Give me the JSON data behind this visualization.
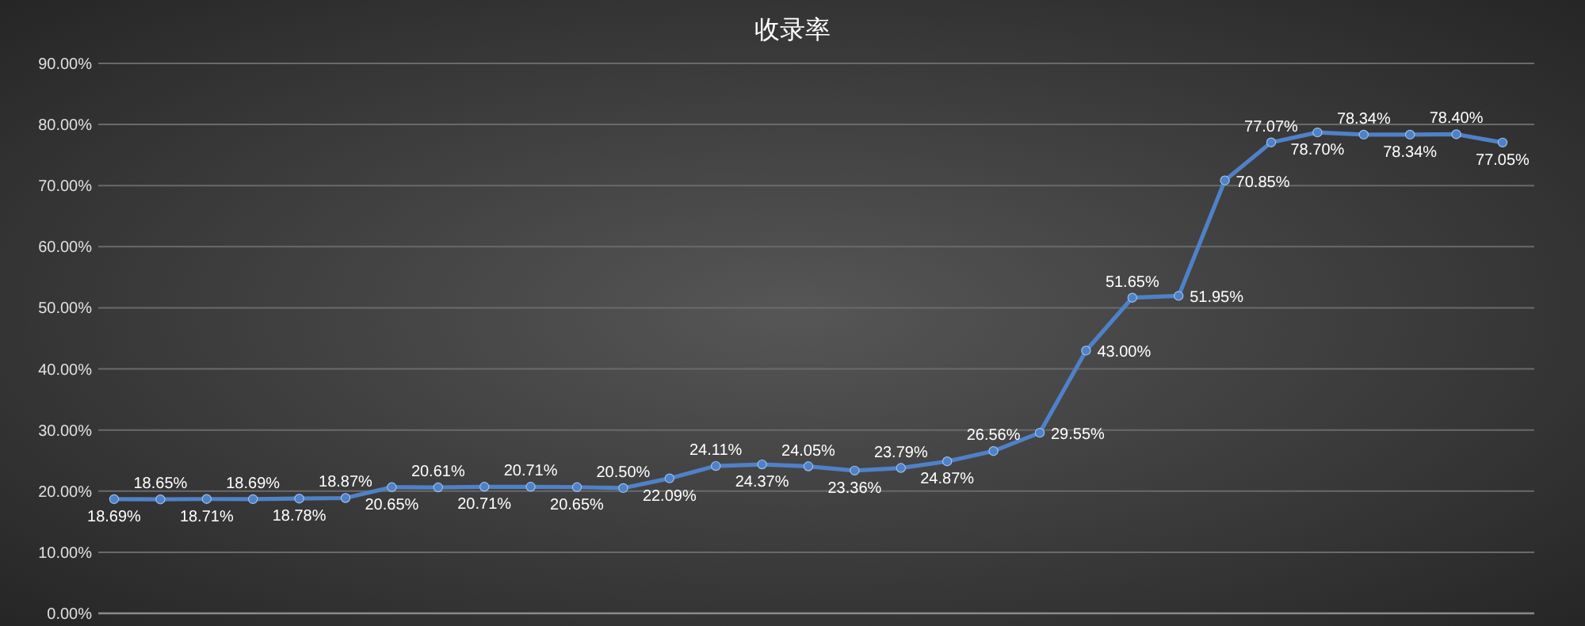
{
  "chart_data": {
    "type": "line",
    "title": "收录率",
    "categories": [
      null,
      null,
      null,
      null,
      null,
      null,
      null,
      null,
      null,
      null,
      null,
      null,
      null,
      null,
      null,
      null,
      null,
      null,
      null,
      null,
      null,
      null,
      null,
      null,
      null,
      null,
      null,
      null,
      null,
      null,
      null
    ],
    "series": [
      {
        "color": "#4f81c7",
        "values": [
          18.69,
          18.65,
          18.71,
          18.69,
          18.78,
          18.87,
          20.65,
          20.61,
          20.71,
          20.71,
          20.65,
          20.5,
          22.09,
          24.11,
          24.37,
          24.05,
          23.36,
          23.79,
          24.87,
          26.56,
          29.55,
          43.0,
          51.65,
          51.95,
          70.85,
          77.07,
          78.7,
          78.34,
          78.34,
          78.4,
          77.05
        ],
        "value_labels": [
          "18.69%",
          "18.65%",
          "18.71%",
          "18.69%",
          "18.78%",
          "18.87%",
          "20.65%",
          "20.61%",
          "20.71%",
          "20.71%",
          "20.65%",
          "20.50%",
          "22.09%",
          "24.11%",
          "24.37%",
          "24.05%",
          "23.36%",
          "23.79%",
          "24.87%",
          "26.56%",
          "29.55%",
          "43.00%",
          "51.65%",
          "51.95%",
          "70.85%",
          "77.07%",
          "78.70%",
          "78.34%",
          "78.34%",
          "78.40%",
          "77.05%"
        ]
      }
    ],
    "ylim": [
      0,
      90
    ],
    "yticks": [
      {
        "value": 0,
        "label": "0.00%"
      },
      {
        "value": 10,
        "label": "10.00%"
      },
      {
        "value": 20,
        "label": "20.00%"
      },
      {
        "value": 30,
        "label": "30.00%"
      },
      {
        "value": 40,
        "label": "40.00%"
      },
      {
        "value": 50,
        "label": "50.00%"
      },
      {
        "value": 60,
        "label": "60.00%"
      },
      {
        "value": 70,
        "label": "70.00%"
      },
      {
        "value": 80,
        "label": "80.00%"
      },
      {
        "value": 90,
        "label": "90.00%"
      }
    ],
    "grid": "y",
    "marker": "circle",
    "line_style": "solid",
    "tick_labels": "y"
  }
}
